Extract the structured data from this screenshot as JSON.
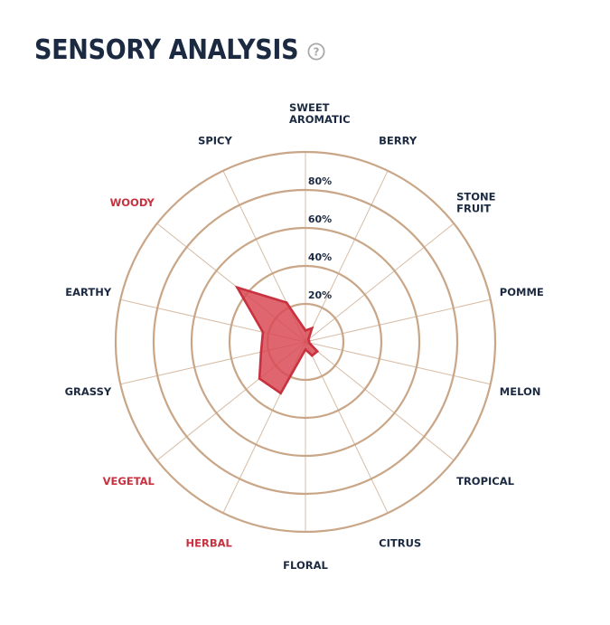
{
  "title": "SENSORY ANALYSIS",
  "help_icon": "question-circle-icon",
  "colors": {
    "title": "#1b2a41",
    "label": "#1b2a41",
    "label_highlight": "#c8313f",
    "grid": "#c9a687",
    "fill": "#d94a55",
    "stroke": "#c8313f"
  },
  "chart_data": {
    "type": "radar",
    "title": "",
    "categories": [
      {
        "label": [
          "SWEET",
          "AROMATIC"
        ],
        "highlight": false
      },
      {
        "label": [
          "BERRY"
        ],
        "highlight": false
      },
      {
        "label": [
          "STONE",
          "FRUIT"
        ],
        "highlight": false
      },
      {
        "label": [
          "POMME"
        ],
        "highlight": false
      },
      {
        "label": [
          "MELON"
        ],
        "highlight": false
      },
      {
        "label": [
          "TROPICAL"
        ],
        "highlight": false
      },
      {
        "label": [
          "CITRUS"
        ],
        "highlight": false
      },
      {
        "label": [
          "FLORAL"
        ],
        "highlight": false
      },
      {
        "label": [
          "HERBAL"
        ],
        "highlight": true
      },
      {
        "label": [
          "VEGETAL"
        ],
        "highlight": true
      },
      {
        "label": [
          "GRASSY"
        ],
        "highlight": false
      },
      {
        "label": [
          "EARTHY"
        ],
        "highlight": false
      },
      {
        "label": [
          "WOODY"
        ],
        "highlight": true
      },
      {
        "label": [
          "SPICY"
        ],
        "highlight": false
      }
    ],
    "values": [
      6,
      8,
      2,
      2,
      2,
      8,
      8,
      4,
      30,
      31,
      24,
      23,
      46,
      23
    ],
    "rlim": [
      0,
      100
    ],
    "ticks": [
      20,
      40,
      60,
      80
    ],
    "tick_labels": [
      "20%",
      "40%",
      "60%",
      "80%"
    ],
    "grid": true,
    "legend": false
  }
}
